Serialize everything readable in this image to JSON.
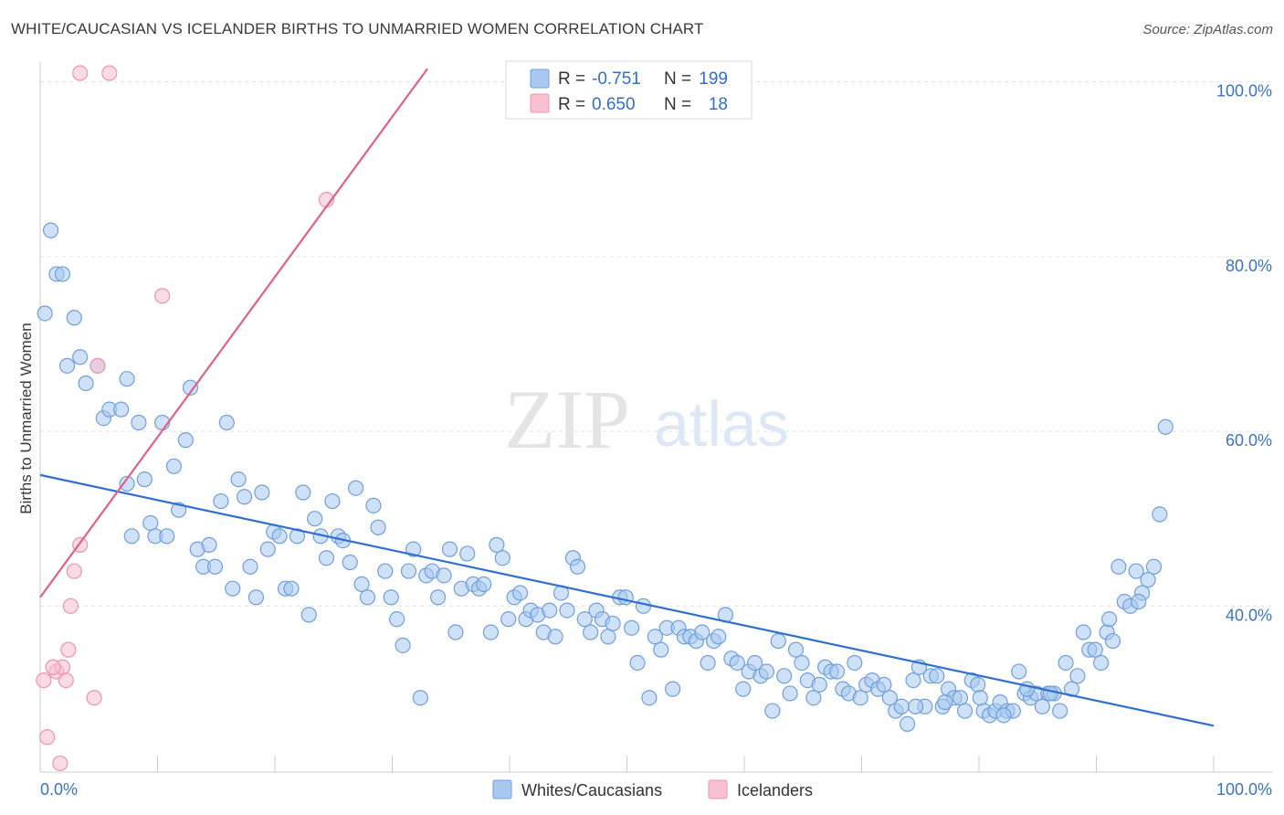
{
  "header": {
    "title": "WHITE/CAUCASIAN VS ICELANDER BIRTHS TO UNMARRIED WOMEN CORRELATION CHART",
    "source": "Source: ZipAtlas.com"
  },
  "watermark": {
    "zip": "ZIP",
    "atlas": "atlas"
  },
  "colors": {
    "blue_fill": "#a8c8f0",
    "blue_stroke": "#6f9fdc",
    "blue_line": "#2f6fd0",
    "pink_fill": "#f8c0d0",
    "pink_stroke": "#ec94b0",
    "pink_line": "#e0608c",
    "tick_label": "#3a72c8",
    "grid": "#e2e2e2"
  },
  "legend_top": {
    "rows": [
      {
        "r_label": "R =",
        "r_value": "-0.751",
        "n_label": "N =",
        "n_value": "199"
      },
      {
        "r_label": "R =",
        "r_value": "0.650",
        "n_label": "N =",
        "n_value": "18"
      }
    ]
  },
  "legend_bottom": {
    "items": [
      {
        "label": "Whites/Caucasians"
      },
      {
        "label": "Icelanders"
      }
    ]
  },
  "chart_data": {
    "type": "scatter",
    "title": "WHITE/CAUCASIAN VS ICELANDER BIRTHS TO UNMARRIED WOMEN CORRELATION CHART",
    "xlabel": "",
    "ylabel": "Births to Unmarried Women",
    "xlim": [
      0,
      100
    ],
    "ylim": [
      20,
      102
    ],
    "x_tick_labels": [
      "0.0%",
      "100.0%"
    ],
    "y_ticks": [
      40,
      60,
      80,
      100
    ],
    "y_tick_labels": [
      "40.0%",
      "60.0%",
      "80.0%",
      "100.0%"
    ],
    "grid": true,
    "legend_position": "top-center",
    "series": [
      {
        "name": "Whites/Caucasians",
        "color": "#a8c8f0",
        "trend": {
          "x": [
            0,
            100
          ],
          "y": [
            55.0,
            26.3
          ]
        },
        "points": [
          [
            0.4,
            73.5
          ],
          [
            0.9,
            83
          ],
          [
            1.4,
            78
          ],
          [
            1.9,
            78
          ],
          [
            2.3,
            67.5
          ],
          [
            2.9,
            73
          ],
          [
            3.4,
            68.5
          ],
          [
            3.9,
            65.5
          ],
          [
            4.9,
            67.5
          ],
          [
            5.4,
            61.5
          ],
          [
            5.9,
            62.5
          ],
          [
            6.9,
            62.5
          ],
          [
            7.4,
            54
          ],
          [
            7.8,
            48
          ],
          [
            7.4,
            66
          ],
          [
            8.4,
            61
          ],
          [
            8.9,
            54.5
          ],
          [
            9.4,
            49.5
          ],
          [
            9.8,
            48
          ],
          [
            10.4,
            61
          ],
          [
            10.8,
            48
          ],
          [
            11.4,
            56
          ],
          [
            11.8,
            51
          ],
          [
            12.4,
            59
          ],
          [
            12.8,
            65
          ],
          [
            13.4,
            46.5
          ],
          [
            13.9,
            44.5
          ],
          [
            14.4,
            47
          ],
          [
            14.9,
            44.5
          ],
          [
            15.4,
            52
          ],
          [
            15.9,
            61
          ],
          [
            16.4,
            42
          ],
          [
            16.9,
            54.5
          ],
          [
            17.4,
            52.5
          ],
          [
            17.9,
            44.5
          ],
          [
            18.4,
            41
          ],
          [
            18.9,
            53
          ],
          [
            19.4,
            46.5
          ],
          [
            19.9,
            48.5
          ],
          [
            20.4,
            48
          ],
          [
            20.9,
            42
          ],
          [
            21.4,
            42
          ],
          [
            21.9,
            48
          ],
          [
            22.4,
            53
          ],
          [
            22.9,
            39
          ],
          [
            23.4,
            50
          ],
          [
            23.9,
            48
          ],
          [
            24.4,
            45.5
          ],
          [
            24.9,
            52
          ],
          [
            25.4,
            48
          ],
          [
            25.8,
            47.5
          ],
          [
            26.4,
            45
          ],
          [
            26.9,
            53.5
          ],
          [
            27.4,
            42.5
          ],
          [
            27.9,
            41
          ],
          [
            28.4,
            51.5
          ],
          [
            28.8,
            49
          ],
          [
            29.4,
            44
          ],
          [
            29.9,
            41
          ],
          [
            30.4,
            38.5
          ],
          [
            30.9,
            35.5
          ],
          [
            31.4,
            44
          ],
          [
            31.8,
            46.5
          ],
          [
            32.4,
            29.5
          ],
          [
            32.9,
            43.5
          ],
          [
            33.4,
            44
          ],
          [
            33.9,
            41
          ],
          [
            34.4,
            43.5
          ],
          [
            34.9,
            46.5
          ],
          [
            35.4,
            37
          ],
          [
            35.9,
            42
          ],
          [
            36.4,
            46
          ],
          [
            36.9,
            42.5
          ],
          [
            37.4,
            42
          ],
          [
            37.8,
            42.5
          ],
          [
            38.4,
            37
          ],
          [
            38.9,
            47
          ],
          [
            39.4,
            45.5
          ],
          [
            39.9,
            38.5
          ],
          [
            40.4,
            41
          ],
          [
            40.9,
            41.5
          ],
          [
            41.4,
            38.5
          ],
          [
            41.8,
            39.5
          ],
          [
            42.4,
            39
          ],
          [
            42.9,
            37
          ],
          [
            43.4,
            39.5
          ],
          [
            43.9,
            36.5
          ],
          [
            44.4,
            41.5
          ],
          [
            44.9,
            39.5
          ],
          [
            45.4,
            45.5
          ],
          [
            45.8,
            44.5
          ],
          [
            46.4,
            38.5
          ],
          [
            46.9,
            37
          ],
          [
            47.4,
            39.5
          ],
          [
            47.9,
            38.5
          ],
          [
            48.4,
            36.5
          ],
          [
            48.8,
            38
          ],
          [
            49.4,
            41
          ],
          [
            49.9,
            41
          ],
          [
            50.4,
            37.5
          ],
          [
            50.9,
            33.5
          ],
          [
            51.4,
            40
          ],
          [
            51.9,
            29.5
          ],
          [
            52.4,
            36.5
          ],
          [
            52.9,
            35
          ],
          [
            53.4,
            37.5
          ],
          [
            53.9,
            30.5
          ],
          [
            54.4,
            37.5
          ],
          [
            54.9,
            36.5
          ],
          [
            55.4,
            36.5
          ],
          [
            55.9,
            36
          ],
          [
            56.4,
            37
          ],
          [
            56.9,
            33.5
          ],
          [
            57.4,
            36
          ],
          [
            57.8,
            36.5
          ],
          [
            58.4,
            39
          ],
          [
            58.9,
            34
          ],
          [
            59.4,
            33.5
          ],
          [
            59.9,
            30.5
          ],
          [
            60.4,
            32.5
          ],
          [
            60.9,
            33.5
          ],
          [
            61.4,
            32
          ],
          [
            61.9,
            32.5
          ],
          [
            62.4,
            28
          ],
          [
            62.9,
            36
          ],
          [
            63.4,
            32
          ],
          [
            63.9,
            30
          ],
          [
            64.4,
            35
          ],
          [
            64.9,
            33.5
          ],
          [
            65.4,
            31.5
          ],
          [
            65.9,
            29.5
          ],
          [
            66.4,
            31
          ],
          [
            66.9,
            33
          ],
          [
            67.4,
            32.5
          ],
          [
            67.9,
            32.5
          ],
          [
            68.4,
            30.5
          ],
          [
            68.9,
            30
          ],
          [
            69.4,
            33.5
          ],
          [
            69.9,
            29.5
          ],
          [
            70.4,
            31
          ],
          [
            70.9,
            31.5
          ],
          [
            71.4,
            30.5
          ],
          [
            71.9,
            31
          ],
          [
            72.4,
            29.5
          ],
          [
            72.9,
            28
          ],
          [
            73.4,
            28.5
          ],
          [
            73.9,
            26.5
          ],
          [
            74.4,
            31.5
          ],
          [
            74.9,
            33
          ],
          [
            75.4,
            28.5
          ],
          [
            75.9,
            32
          ],
          [
            76.4,
            32
          ],
          [
            76.9,
            28.5
          ],
          [
            77.4,
            30.5
          ],
          [
            77.9,
            29.5
          ],
          [
            78.4,
            29.5
          ],
          [
            78.8,
            28
          ],
          [
            79.4,
            31.5
          ],
          [
            79.9,
            31
          ],
          [
            80.4,
            28
          ],
          [
            80.9,
            27.5
          ],
          [
            81.4,
            28
          ],
          [
            81.8,
            29
          ],
          [
            82.4,
            28
          ],
          [
            82.9,
            28
          ],
          [
            83.4,
            32.5
          ],
          [
            83.9,
            30
          ],
          [
            84.4,
            29.5
          ],
          [
            84.9,
            30
          ],
          [
            85.4,
            28.5
          ],
          [
            85.9,
            30
          ],
          [
            86.4,
            30
          ],
          [
            86.9,
            28
          ],
          [
            87.4,
            33.5
          ],
          [
            87.9,
            30.5
          ],
          [
            88.4,
            32
          ],
          [
            88.9,
            37
          ],
          [
            89.4,
            35
          ],
          [
            89.9,
            35
          ],
          [
            90.4,
            33.5
          ],
          [
            90.9,
            37
          ],
          [
            91.4,
            36
          ],
          [
            91.9,
            44.5
          ],
          [
            92.4,
            40.5
          ],
          [
            92.9,
            40
          ],
          [
            93.4,
            44
          ],
          [
            93.9,
            41.5
          ],
          [
            94.4,
            43
          ],
          [
            94.9,
            44.5
          ],
          [
            95.4,
            50.5
          ],
          [
            95.9,
            60.5
          ],
          [
            93.6,
            40.5
          ],
          [
            91.1,
            38.5
          ],
          [
            86.1,
            30
          ],
          [
            84.1,
            30.5
          ],
          [
            82.1,
            27.5
          ],
          [
            80.1,
            29.5
          ],
          [
            77.1,
            29
          ],
          [
            74.6,
            28.5
          ]
        ]
      },
      {
        "name": "Icelanders",
        "color": "#f8c0d0",
        "trend": {
          "x": [
            0,
            33
          ],
          "y": [
            41.0,
            101.5
          ]
        },
        "points": [
          [
            3.4,
            101
          ],
          [
            5.9,
            101
          ],
          [
            24.4,
            86.5
          ],
          [
            41.9,
            101
          ],
          [
            10.4,
            75.5
          ],
          [
            4.9,
            67.5
          ],
          [
            1.4,
            32.5
          ],
          [
            1.9,
            33
          ],
          [
            2.4,
            35
          ],
          [
            2.9,
            44
          ],
          [
            2.6,
            40
          ],
          [
            2.2,
            31.5
          ],
          [
            0.6,
            25
          ],
          [
            1.7,
            22
          ],
          [
            3.4,
            47
          ],
          [
            4.6,
            29.5
          ],
          [
            1.1,
            33
          ],
          [
            0.3,
            31.5
          ]
        ]
      }
    ]
  }
}
